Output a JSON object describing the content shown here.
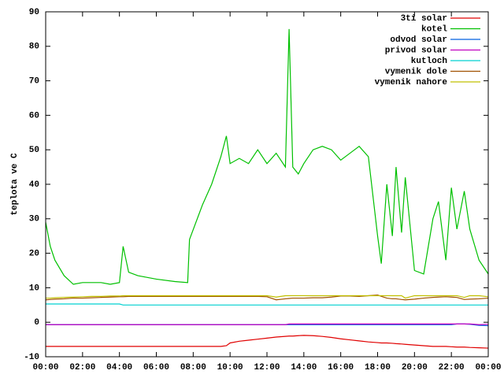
{
  "chart_data": {
    "type": "line",
    "ylabel": "teplota ve C",
    "legend": "top-right",
    "grid": false,
    "xlim": [
      0,
      24
    ],
    "xticks": [
      {
        "value": 0,
        "label": "00:00"
      },
      {
        "value": 2,
        "label": "02:00"
      },
      {
        "value": 4,
        "label": "04:00"
      },
      {
        "value": 6,
        "label": "06:00"
      },
      {
        "value": 8,
        "label": "08:00"
      },
      {
        "value": 10,
        "label": "10:00"
      },
      {
        "value": 12,
        "label": "12:00"
      },
      {
        "value": 14,
        "label": "14:00"
      },
      {
        "value": 16,
        "label": "16:00"
      },
      {
        "value": 18,
        "label": "18:00"
      },
      {
        "value": 20,
        "label": "20:00"
      },
      {
        "value": 22,
        "label": "22:00"
      },
      {
        "value": 24,
        "label": "00:00"
      }
    ],
    "ylim": [
      -10,
      90
    ],
    "yticks": [
      -10,
      0,
      10,
      20,
      30,
      40,
      50,
      60,
      70,
      80,
      90
    ],
    "x": [
      0,
      0.25,
      0.5,
      1,
      1.5,
      2,
      2.5,
      3,
      3.5,
      4,
      4.2,
      4.5,
      5,
      6,
      7,
      7.7,
      7.8,
      8.5,
      9,
      9.5,
      9.8,
      10,
      10.5,
      11,
      11.5,
      12,
      12.5,
      13,
      13.2,
      13.4,
      13.7,
      14,
      14.5,
      15,
      15.5,
      16,
      16.5,
      17,
      17.5,
      18,
      18.2,
      18.5,
      18.8,
      19,
      19.3,
      19.5,
      20,
      20.5,
      21,
      21.3,
      21.7,
      22,
      22.3,
      22.7,
      23,
      23.5,
      24
    ],
    "series": [
      {
        "name": "3ti solar",
        "color": "#e00000",
        "values": [
          -7,
          -7,
          -7,
          -7,
          -7,
          -7,
          -7,
          -7,
          -7,
          -7,
          -7,
          -7,
          -7,
          -7,
          -7,
          -7,
          -7,
          -7,
          -7,
          -7,
          -6.8,
          -6,
          -5.5,
          -5.2,
          -4.9,
          -4.6,
          -4.3,
          -4.1,
          -4,
          -4,
          -3.9,
          -3.8,
          -3.9,
          -4.1,
          -4.4,
          -4.8,
          -5.1,
          -5.4,
          -5.7,
          -5.9,
          -6,
          -6,
          -6.1,
          -6.2,
          -6.3,
          -6.4,
          -6.6,
          -6.8,
          -7,
          -7,
          -7,
          -7.1,
          -7.2,
          -7.2,
          -7.3,
          -7.4,
          -7.5
        ]
      },
      {
        "name": "kotel",
        "color": "#00c000",
        "values": [
          29,
          22,
          18,
          13.5,
          11,
          11.5,
          11.5,
          11.5,
          11,
          11.5,
          22,
          14.5,
          13.5,
          12.5,
          11.8,
          11.5,
          24,
          34,
          40,
          48,
          54,
          46,
          47.5,
          46,
          50,
          46,
          49,
          45,
          85,
          45,
          43,
          46,
          50,
          51,
          50,
          47,
          49,
          51,
          48,
          25,
          17,
          40,
          25,
          45,
          26,
          42,
          15,
          14,
          30,
          35,
          18,
          39,
          27,
          38,
          27,
          18,
          14
        ]
      },
      {
        "name": "odvod solar",
        "color": "#0060e0",
        "values": [
          -0.7,
          -0.7,
          -0.7,
          -0.7,
          -0.7,
          -0.7,
          -0.7,
          -0.7,
          -0.7,
          -0.7,
          -0.7,
          -0.7,
          -0.7,
          -0.7,
          -0.7,
          -0.7,
          -0.7,
          -0.7,
          -0.7,
          -0.7,
          -0.7,
          -0.7,
          -0.7,
          -0.7,
          -0.7,
          -0.7,
          -0.7,
          -0.7,
          -0.7,
          -0.7,
          -0.7,
          -0.7,
          -0.7,
          -0.7,
          -0.7,
          -0.7,
          -0.7,
          -0.7,
          -0.7,
          -0.7,
          -0.7,
          -0.7,
          -0.7,
          -0.7,
          -0.7,
          -0.7,
          -0.7,
          -0.7,
          -0.7,
          -0.7,
          -0.7,
          -0.7,
          -0.5,
          -0.5,
          -0.6,
          -0.9,
          -1
        ]
      },
      {
        "name": "privod solar",
        "color": "#c000c0",
        "values": [
          -0.7,
          -0.7,
          -0.7,
          -0.7,
          -0.7,
          -0.7,
          -0.7,
          -0.7,
          -0.7,
          -0.7,
          -0.7,
          -0.7,
          -0.7,
          -0.7,
          -0.7,
          -0.7,
          -0.7,
          -0.7,
          -0.7,
          -0.7,
          -0.7,
          -0.7,
          -0.7,
          -0.7,
          -0.7,
          -0.7,
          -0.7,
          -0.7,
          -0.5,
          -0.5,
          -0.5,
          -0.5,
          -0.5,
          -0.5,
          -0.5,
          -0.5,
          -0.5,
          -0.5,
          -0.5,
          -0.5,
          -0.5,
          -0.5,
          -0.5,
          -0.5,
          -0.5,
          -0.5,
          -0.5,
          -0.5,
          -0.5,
          -0.5,
          -0.5,
          -0.5,
          -0.5,
          -0.5,
          -0.5,
          -0.7,
          -0.6
        ]
      },
      {
        "name": "kutloch",
        "color": "#00d0d0",
        "values": [
          5.3,
          5.3,
          5.3,
          5.3,
          5.3,
          5.3,
          5.3,
          5.3,
          5.3,
          5.3,
          5,
          5,
          5,
          5,
          5,
          5,
          5,
          5,
          5,
          5,
          5,
          5,
          5,
          5,
          5,
          5,
          5,
          5,
          5,
          5,
          5,
          5,
          5,
          5,
          5,
          5,
          5,
          5,
          5,
          5,
          5,
          5,
          5,
          5,
          5,
          5,
          5,
          5,
          5,
          5,
          5,
          5,
          5,
          5,
          5,
          5,
          5
        ]
      },
      {
        "name": "vymenik dole",
        "color": "#a05000",
        "values": [
          6.5,
          6.6,
          6.7,
          6.8,
          7,
          7,
          7.1,
          7.2,
          7.3,
          7.4,
          7.4,
          7.5,
          7.5,
          7.5,
          7.5,
          7.5,
          7.5,
          7.5,
          7.5,
          7.5,
          7.5,
          7.5,
          7.5,
          7.5,
          7.5,
          7.4,
          6.5,
          6.8,
          6.9,
          7,
          7,
          7,
          7.1,
          7.1,
          7.3,
          7.6,
          7.6,
          7.5,
          7.7,
          7.9,
          7.5,
          7,
          6.8,
          6.8,
          6.6,
          6.5,
          6.7,
          7,
          7.2,
          7.3,
          7.4,
          7.3,
          7.2,
          6.6,
          6.7,
          6.8,
          7
        ]
      },
      {
        "name": "vymenik nahore",
        "color": "#c0c000",
        "values": [
          7,
          7,
          7.1,
          7.2,
          7.3,
          7.4,
          7.5,
          7.5,
          7.6,
          7.6,
          7.7,
          7.7,
          7.7,
          7.7,
          7.7,
          7.7,
          7.7,
          7.7,
          7.7,
          7.7,
          7.7,
          7.7,
          7.7,
          7.7,
          7.7,
          7.7,
          7.3,
          7.7,
          7.7,
          7.7,
          7.7,
          7.7,
          7.7,
          7.7,
          7.7,
          7.7,
          7.7,
          7.7,
          7.7,
          7.7,
          7.7,
          7.7,
          7.7,
          7.7,
          7.7,
          7,
          7.7,
          7.7,
          7.7,
          7.7,
          7.7,
          7.7,
          7.7,
          7.2,
          7.7,
          7.7,
          7.4
        ]
      }
    ]
  }
}
